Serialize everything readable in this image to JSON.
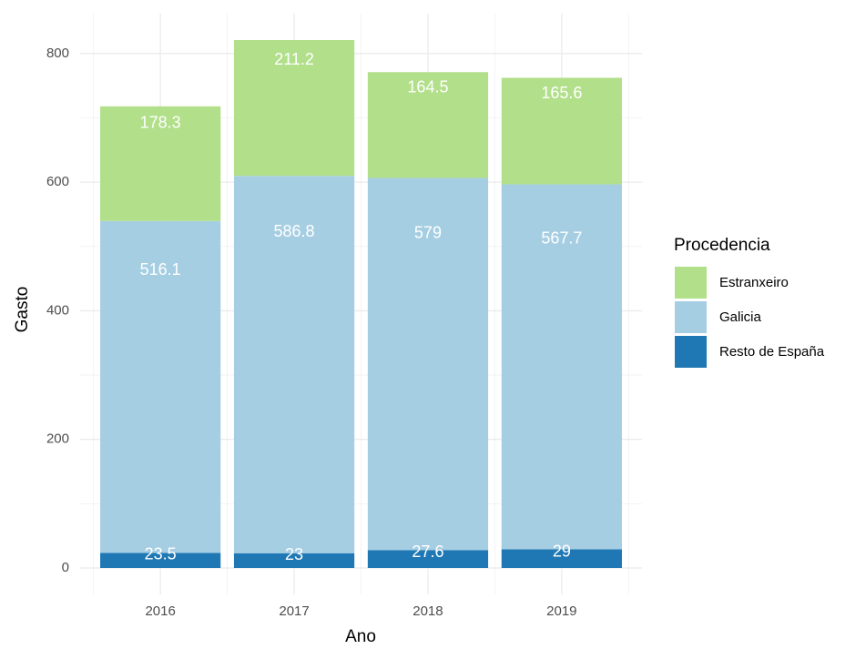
{
  "chart_data": {
    "type": "stacked_bar",
    "x_label": "Ano",
    "y_label": "Gasto",
    "legend_title": "Procedencia",
    "categories": [
      "2016",
      "2017",
      "2018",
      "2019"
    ],
    "series": [
      {
        "name": "Resto de España",
        "color": "#1f78b4",
        "values": [
          23.5,
          23,
          27.6,
          29
        ]
      },
      {
        "name": "Galicia",
        "color": "#a6cee3",
        "values": [
          516.1,
          586.8,
          579,
          567.7
        ]
      },
      {
        "name": "Estranxeiro",
        "color": "#b2df8a",
        "values": [
          178.3,
          211.2,
          164.5,
          165.6
        ]
      }
    ],
    "ylim": [
      -41.05,
      862.05
    ],
    "yticks": [
      0,
      200,
      400,
      600,
      800
    ],
    "grid": true,
    "legend": "right"
  }
}
